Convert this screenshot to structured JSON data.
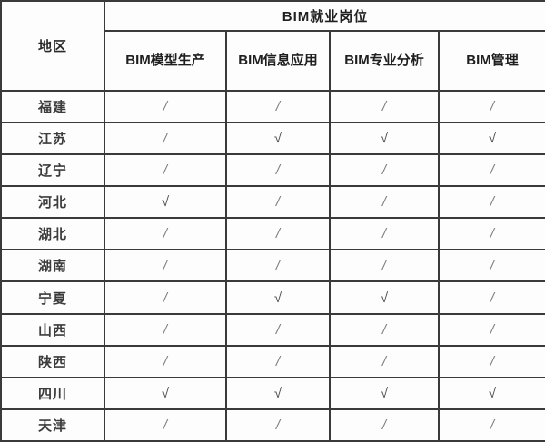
{
  "table": {
    "corner_header": "地区",
    "group_header": "BIM就业岗位",
    "columns": [
      "BIM模型生产",
      "BIM信息应用",
      "BIM专业分析",
      "BIM管理"
    ],
    "rows": [
      {
        "region": "福建",
        "values": [
          "/",
          "/",
          "/",
          "/"
        ]
      },
      {
        "region": "江苏",
        "values": [
          "/",
          "√",
          "√",
          "√"
        ]
      },
      {
        "region": "辽宁",
        "values": [
          "/",
          "/",
          "/",
          "/"
        ]
      },
      {
        "region": "河北",
        "values": [
          "√",
          "/",
          "/",
          "/"
        ]
      },
      {
        "region": "湖北",
        "values": [
          "/",
          "/",
          "/",
          "/"
        ]
      },
      {
        "region": "湖南",
        "values": [
          "/",
          "/",
          "/",
          "/"
        ]
      },
      {
        "region": "宁夏",
        "values": [
          "/",
          "√",
          "√",
          "/"
        ]
      },
      {
        "region": "山西",
        "values": [
          "/",
          "/",
          "/",
          "/"
        ]
      },
      {
        "region": "陕西",
        "values": [
          "/",
          "/",
          "/",
          "/"
        ]
      },
      {
        "region": "四川",
        "values": [
          "√",
          "√",
          "√",
          "√"
        ]
      },
      {
        "region": "天津",
        "values": [
          "/",
          "/",
          "/",
          "/"
        ]
      }
    ],
    "marks": {
      "not_available": "/",
      "available": "√"
    },
    "colors": {
      "border": "#3a3a3a",
      "header_text": "#1f1f1f",
      "region_text": "#3c3c3c",
      "slash_mark": "#7d7d7d",
      "check_mark": "#4a4a4a",
      "background": "#fdfdfd"
    }
  }
}
